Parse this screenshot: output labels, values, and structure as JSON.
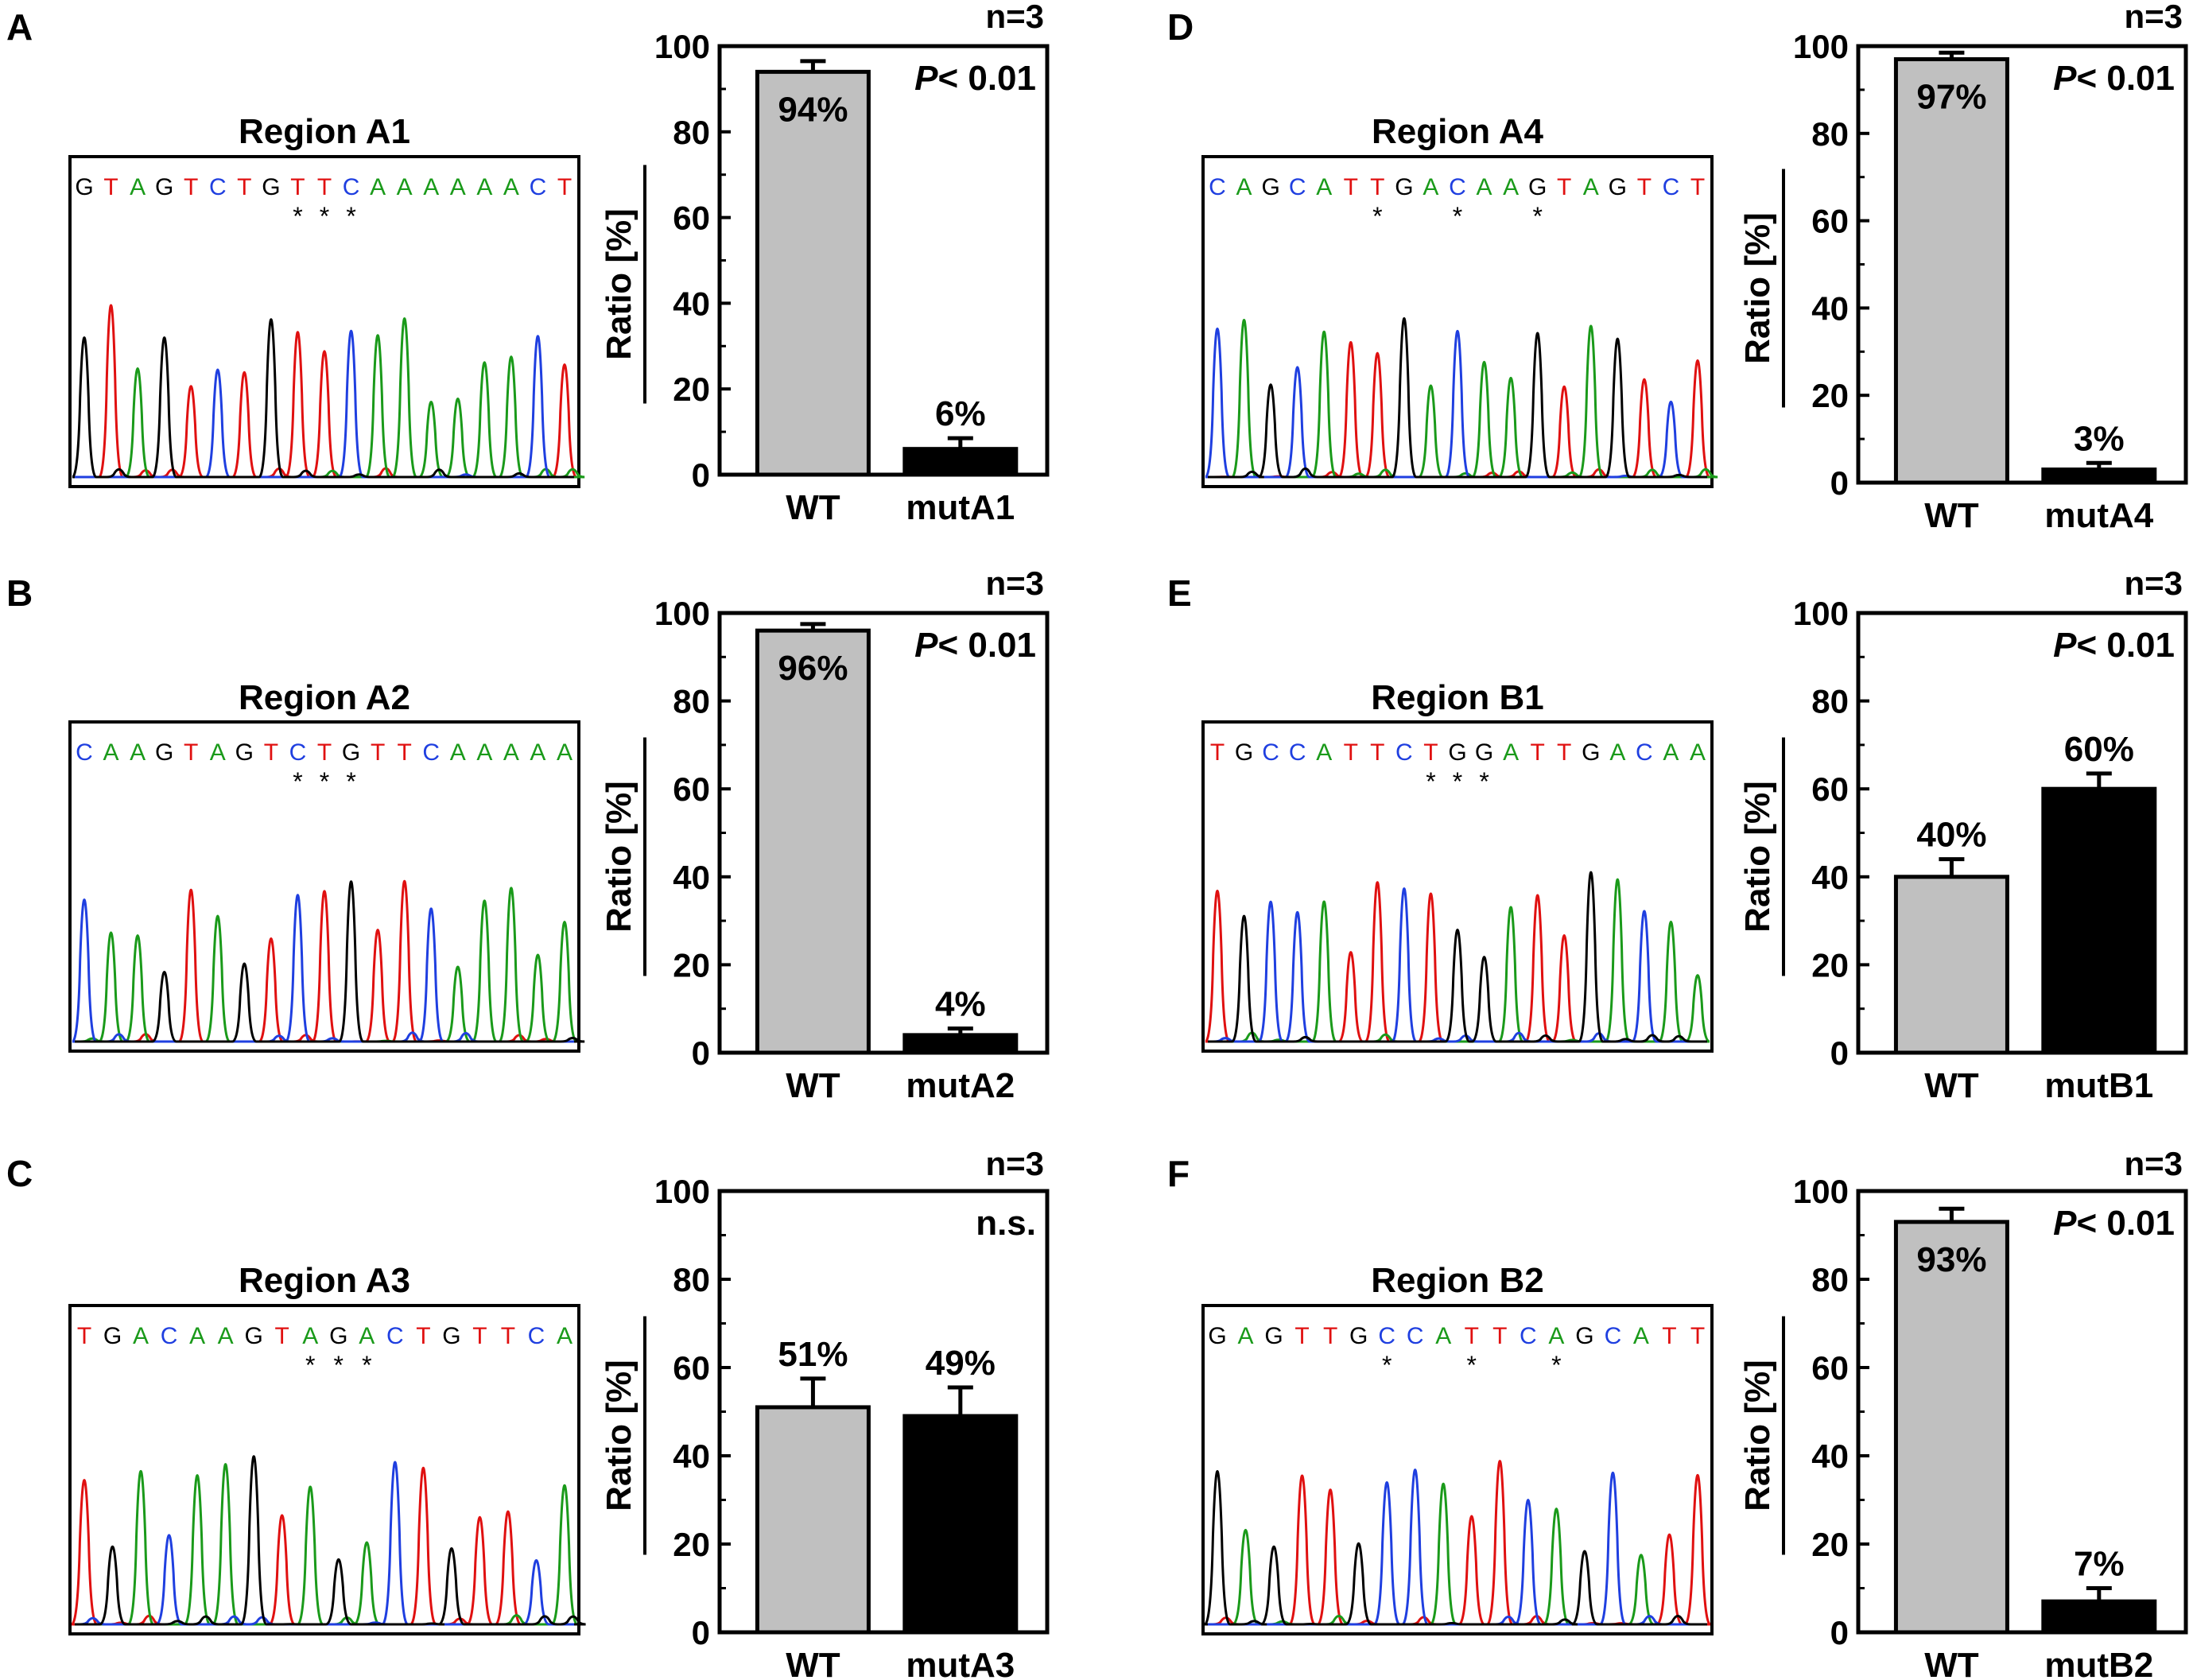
{
  "figure": {
    "panels": [
      {
        "letter": "A",
        "region": "Region A1",
        "sequence": "GTAGTCTGTTCAAAAAACT",
        "stars": [
          8,
          9,
          10
        ]
      },
      {
        "letter": "B",
        "region": "Region A2",
        "sequence": "CAAGTAGTCTGTTCAAAAA",
        "stars": [
          8,
          9,
          10
        ]
      },
      {
        "letter": "C",
        "region": "Region A3",
        "sequence": "TGACAAGTAGACTGTTCA",
        "stars": [
          8,
          9,
          10
        ]
      },
      {
        "letter": "D",
        "region": "Region A4",
        "sequence": "CAGCATTGACAAGTAGTCT",
        "stars": [
          6,
          9,
          12
        ]
      },
      {
        "letter": "E",
        "region": "Region B1",
        "sequence": "TGCCATTCTGGATTGACAA",
        "stars": [
          8,
          9,
          10
        ]
      },
      {
        "letter": "F",
        "region": "Region B2",
        "sequence": "GAGTTGCCATTCAGCATT",
        "stars": [
          6,
          9,
          12
        ]
      }
    ]
  },
  "colors": {
    "A": "#1a9a1a",
    "C": "#1f3fe0",
    "G": "#000000",
    "T": "#e01010",
    "wt_bar": "#c0c0c0",
    "mut_bar": "#000000"
  },
  "chart_data": [
    {
      "type": "bar",
      "panel": "A",
      "categories": [
        "WT",
        "mutA1"
      ],
      "values": [
        94,
        6
      ],
      "errors": [
        2.5,
        2.5
      ],
      "value_labels": [
        "94%",
        "6%"
      ],
      "n_label": "n=3",
      "stat_p": "P",
      "stat_rest": "< 0.01",
      "ylabel": "Ratio [%]",
      "ylim": [
        0,
        100
      ],
      "yticks": [
        "0",
        "20",
        "40",
        "60",
        "80",
        "100"
      ]
    },
    {
      "type": "bar",
      "panel": "B",
      "categories": [
        "WT",
        "mutA2"
      ],
      "values": [
        96,
        4
      ],
      "errors": [
        1.5,
        1.5
      ],
      "value_labels": [
        "96%",
        "4%"
      ],
      "n_label": "n=3",
      "stat_p": "P",
      "stat_rest": "< 0.01",
      "ylabel": "Ratio [%]",
      "ylim": [
        0,
        100
      ],
      "yticks": [
        "0",
        "20",
        "40",
        "60",
        "80",
        "100"
      ]
    },
    {
      "type": "bar",
      "panel": "C",
      "categories": [
        "WT",
        "mutA3"
      ],
      "values": [
        51,
        49
      ],
      "errors": [
        6.5,
        6.5
      ],
      "value_labels": [
        "51%",
        "49%"
      ],
      "n_label": "n=3",
      "stat_p": "",
      "stat_rest": "n.s.",
      "ylabel": "Ratio [%]",
      "ylim": [
        0,
        100
      ],
      "yticks": [
        "0",
        "20",
        "40",
        "60",
        "80",
        "100"
      ]
    },
    {
      "type": "bar",
      "panel": "D",
      "categories": [
        "WT",
        "mutA4"
      ],
      "values": [
        97,
        3
      ],
      "errors": [
        1.5,
        1.5
      ],
      "value_labels": [
        "97%",
        "3%"
      ],
      "n_label": "n=3",
      "stat_p": "P",
      "stat_rest": "< 0.01",
      "ylabel": "Ratio [%]",
      "ylim": [
        0,
        100
      ],
      "yticks": [
        "0",
        "20",
        "40",
        "60",
        "80",
        "100"
      ]
    },
    {
      "type": "bar",
      "panel": "E",
      "categories": [
        "WT",
        "mutB1"
      ],
      "values": [
        40,
        60
      ],
      "errors": [
        4,
        3.5
      ],
      "value_labels": [
        "40%",
        "60%"
      ],
      "n_label": "n=3",
      "stat_p": "P",
      "stat_rest": "< 0.01",
      "ylabel": "Ratio [%]",
      "ylim": [
        0,
        100
      ],
      "yticks": [
        "0",
        "20",
        "40",
        "60",
        "80",
        "100"
      ]
    },
    {
      "type": "bar",
      "panel": "F",
      "categories": [
        "WT",
        "mutB2"
      ],
      "values": [
        93,
        7
      ],
      "errors": [
        3,
        3
      ],
      "value_labels": [
        "93%",
        "7%"
      ],
      "n_label": "n=3",
      "stat_p": "P",
      "stat_rest": "< 0.01",
      "ylabel": "Ratio [%]",
      "ylim": [
        0,
        100
      ],
      "yticks": [
        "0",
        "20",
        "40",
        "60",
        "80",
        "100"
      ]
    }
  ]
}
